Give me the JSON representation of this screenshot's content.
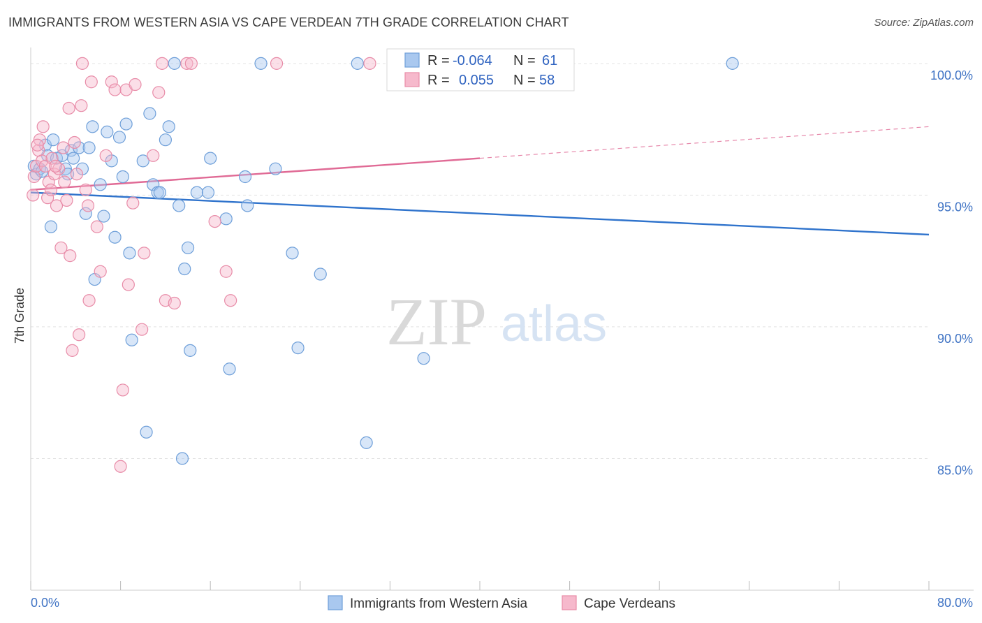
{
  "title": "IMMIGRANTS FROM WESTERN ASIA VS CAPE VERDEAN 7TH GRADE CORRELATION CHART",
  "source": "Source: ZipAtlas.com",
  "watermark": {
    "zip": "ZIP",
    "atlas": "atlas"
  },
  "colors": {
    "blue_fill": "#a9c8ef",
    "blue_stroke": "#6e9fd9",
    "blue_line": "#2f73cc",
    "pink_fill": "#f6b9cc",
    "pink_stroke": "#e88ca8",
    "pink_line": "#e06a95",
    "axis_label": "#3f73c4",
    "grid": "#e3e3e3"
  },
  "legend": {
    "rows": [
      {
        "r_label": "R =",
        "r_value": "-0.064",
        "n_label": "N =",
        "n_value": "61",
        "series": "blue"
      },
      {
        "r_label": "R =",
        "r_value": "0.055",
        "n_label": "N =",
        "n_value": "58",
        "series": "pink"
      }
    ]
  },
  "chart_data": {
    "type": "scatter",
    "title": "IMMIGRANTS FROM WESTERN ASIA VS CAPE VERDEAN 7TH GRADE CORRELATION CHART",
    "xlabel": "",
    "ylabel": "7th Grade",
    "xlim": [
      0,
      80
    ],
    "ylim": [
      80,
      100.5
    ],
    "x_tick_labels": [
      "0.0%",
      "80.0%"
    ],
    "y_tick_labels": [
      "100.0%",
      "95.0%",
      "90.0%",
      "85.0%"
    ],
    "y_ticks": [
      100,
      95,
      90,
      85
    ],
    "grid": true,
    "legend_position": "top-center",
    "series": [
      {
        "name": "Immigrants from Western Asia",
        "color": "blue",
        "trend": {
          "x": [
            0,
            80
          ],
          "y": [
            95.1,
            93.5
          ],
          "solid_until": 80
        },
        "points": [
          [
            0.3,
            96.1
          ],
          [
            0.5,
            95.8
          ],
          [
            0.8,
            96.0
          ],
          [
            1.0,
            95.9
          ],
          [
            1.3,
            96.9
          ],
          [
            1.5,
            96.5
          ],
          [
            1.8,
            93.8
          ],
          [
            2.0,
            97.1
          ],
          [
            2.3,
            96.4
          ],
          [
            2.8,
            96.5
          ],
          [
            3.1,
            96.0
          ],
          [
            3.3,
            95.8
          ],
          [
            3.6,
            96.7
          ],
          [
            3.8,
            96.4
          ],
          [
            4.3,
            96.8
          ],
          [
            4.6,
            96.0
          ],
          [
            4.9,
            94.3
          ],
          [
            5.2,
            96.8
          ],
          [
            5.5,
            97.6
          ],
          [
            5.7,
            91.8
          ],
          [
            6.2,
            95.4
          ],
          [
            6.5,
            94.2
          ],
          [
            6.8,
            97.4
          ],
          [
            7.2,
            96.3
          ],
          [
            7.5,
            93.4
          ],
          [
            7.9,
            97.2
          ],
          [
            8.2,
            95.7
          ],
          [
            8.5,
            97.7
          ],
          [
            8.8,
            92.8
          ],
          [
            9.0,
            89.5
          ],
          [
            10.0,
            96.3
          ],
          [
            10.3,
            86.0
          ],
          [
            10.6,
            98.1
          ],
          [
            10.9,
            95.4
          ],
          [
            11.3,
            95.1
          ],
          [
            11.5,
            95.1
          ],
          [
            12.0,
            97.1
          ],
          [
            12.3,
            97.6
          ],
          [
            12.8,
            100.0
          ],
          [
            13.2,
            94.6
          ],
          [
            13.5,
            85.0
          ],
          [
            13.7,
            92.2
          ],
          [
            14.0,
            93.0
          ],
          [
            14.2,
            89.1
          ],
          [
            14.8,
            95.1
          ],
          [
            15.8,
            95.1
          ],
          [
            16.0,
            96.4
          ],
          [
            17.4,
            94.1
          ],
          [
            17.7,
            88.4
          ],
          [
            19.1,
            95.7
          ],
          [
            19.3,
            94.6
          ],
          [
            20.5,
            100.0
          ],
          [
            21.8,
            96.0
          ],
          [
            23.3,
            92.8
          ],
          [
            23.8,
            89.2
          ],
          [
            25.8,
            92.0
          ],
          [
            29.1,
            100.0
          ],
          [
            29.9,
            85.6
          ],
          [
            35.0,
            88.8
          ],
          [
            44.0,
            100.0
          ],
          [
            62.5,
            100.0
          ]
        ]
      },
      {
        "name": "Cape Verdeans",
        "color": "pink",
        "trend": {
          "x": [
            0,
            80
          ],
          "y": [
            95.2,
            97.6
          ],
          "solid_until": 40
        },
        "points": [
          [
            0.2,
            95.0
          ],
          [
            0.3,
            95.7
          ],
          [
            0.5,
            96.1
          ],
          [
            0.7,
            96.7
          ],
          [
            0.8,
            97.1
          ],
          [
            1.0,
            96.3
          ],
          [
            1.1,
            97.6
          ],
          [
            1.3,
            96.1
          ],
          [
            1.5,
            94.9
          ],
          [
            1.6,
            95.5
          ],
          [
            1.8,
            95.2
          ],
          [
            1.9,
            96.4
          ],
          [
            2.1,
            95.8
          ],
          [
            2.3,
            94.6
          ],
          [
            2.5,
            96.0
          ],
          [
            2.7,
            93.0
          ],
          [
            2.9,
            96.8
          ],
          [
            3.0,
            95.5
          ],
          [
            3.2,
            94.8
          ],
          [
            3.4,
            98.3
          ],
          [
            3.5,
            92.7
          ],
          [
            3.7,
            89.1
          ],
          [
            3.9,
            97.0
          ],
          [
            4.1,
            95.8
          ],
          [
            4.3,
            89.7
          ],
          [
            4.5,
            98.4
          ],
          [
            4.6,
            100.0
          ],
          [
            4.9,
            95.2
          ],
          [
            5.1,
            94.6
          ],
          [
            5.2,
            91.0
          ],
          [
            5.4,
            99.3
          ],
          [
            5.9,
            93.8
          ],
          [
            6.2,
            92.1
          ],
          [
            6.7,
            96.5
          ],
          [
            7.2,
            99.3
          ],
          [
            7.5,
            99.0
          ],
          [
            8.0,
            84.7
          ],
          [
            8.2,
            87.6
          ],
          [
            8.5,
            99.0
          ],
          [
            8.7,
            91.6
          ],
          [
            9.1,
            94.7
          ],
          [
            9.3,
            99.2
          ],
          [
            9.9,
            89.9
          ],
          [
            10.1,
            92.8
          ],
          [
            10.9,
            96.5
          ],
          [
            11.4,
            98.9
          ],
          [
            11.7,
            100.0
          ],
          [
            12.0,
            91.0
          ],
          [
            12.8,
            90.9
          ],
          [
            13.9,
            100.0
          ],
          [
            14.3,
            100.0
          ],
          [
            16.4,
            94.0
          ],
          [
            17.4,
            92.1
          ],
          [
            17.8,
            91.0
          ],
          [
            21.9,
            100.0
          ],
          [
            30.2,
            100.0
          ],
          [
            0.6,
            96.9
          ],
          [
            2.2,
            96.1
          ]
        ]
      }
    ]
  },
  "bottom_legend": [
    {
      "label": "Immigrants from Western Asia",
      "series": "blue"
    },
    {
      "label": "Cape Verdeans",
      "series": "pink"
    }
  ]
}
